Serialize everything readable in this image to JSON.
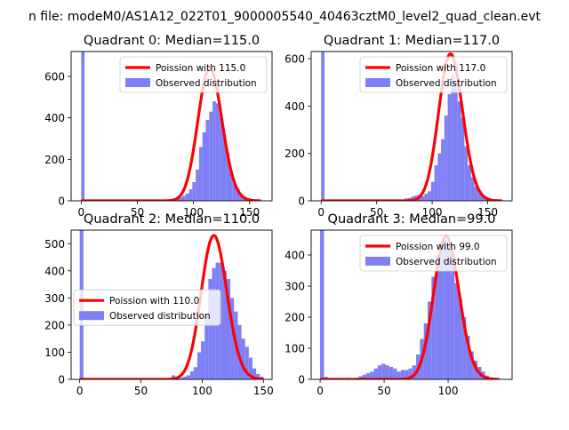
{
  "figure": {
    "suptitle": "n file: modeM0/AS1A12_022T01_9000005540_40463cztM0_level2_quad_clean.evt",
    "colors": {
      "observed": "#7f7ff6",
      "poisson": "#ff0000",
      "axis": "#000000"
    }
  },
  "chart_data": [
    {
      "type": "bar",
      "title": "Quadrant 0: Median=115.0",
      "xlim": [
        -9,
        170
      ],
      "ylim": [
        0,
        720
      ],
      "xticks": [
        0,
        50,
        100,
        150
      ],
      "yticks": [
        0,
        200,
        400,
        600
      ],
      "legend": {
        "placement": "top-right",
        "poisson": "Poission with 115.0",
        "observed": "Observed distribution"
      },
      "series": [
        {
          "name": "Observed distribution",
          "kind": "histogram",
          "bin_width": 3.0,
          "bins": [
            [
              0,
              760
            ],
            [
              60,
              2
            ],
            [
              66,
              3
            ],
            [
              69,
              5
            ],
            [
              72,
              4
            ],
            [
              75,
              5
            ],
            [
              78,
              8
            ],
            [
              81,
              7
            ],
            [
              84,
              12
            ],
            [
              87,
              16
            ],
            [
              90,
              25
            ],
            [
              93,
              35
            ],
            [
              96,
              55
            ],
            [
              99,
              90
            ],
            [
              102,
              150
            ],
            [
              105,
              260
            ],
            [
              108,
              330
            ],
            [
              111,
              390
            ],
            [
              114,
              430
            ],
            [
              117,
              480
            ],
            [
              120,
              470
            ],
            [
              123,
              420
            ],
            [
              126,
              320
            ],
            [
              129,
              230
            ],
            [
              132,
              140
            ],
            [
              135,
              90
            ],
            [
              138,
              60
            ],
            [
              141,
              30
            ],
            [
              144,
              15
            ],
            [
              147,
              8
            ],
            [
              150,
              4
            ],
            [
              153,
              2
            ]
          ]
        },
        {
          "name": "Poission with 115.0",
          "kind": "line",
          "mean": 115.0,
          "peak": 640,
          "x_range": [
            0,
            160
          ]
        }
      ]
    },
    {
      "type": "bar",
      "title": "Quadrant 1: Median=117.0",
      "xlim": [
        -9,
        172
      ],
      "ylim": [
        0,
        630
      ],
      "xticks": [
        0,
        50,
        100,
        150
      ],
      "yticks": [
        0,
        200,
        400,
        600
      ],
      "legend": {
        "placement": "top-right",
        "poisson": "Poission with 117.0",
        "observed": "Observed distribution"
      },
      "series": [
        {
          "name": "Observed distribution",
          "kind": "histogram",
          "bin_width": 3.0,
          "bins": [
            [
              0,
              650
            ],
            [
              60,
              4
            ],
            [
              66,
              5
            ],
            [
              69,
              6
            ],
            [
              75,
              10
            ],
            [
              78,
              12
            ],
            [
              81,
              18
            ],
            [
              84,
              22
            ],
            [
              87,
              25
            ],
            [
              90,
              20
            ],
            [
              93,
              30
            ],
            [
              96,
              40
            ],
            [
              99,
              80
            ],
            [
              102,
              150
            ],
            [
              105,
              200
            ],
            [
              108,
              260
            ],
            [
              111,
              360
            ],
            [
              114,
              450
            ],
            [
              117,
              530
            ],
            [
              120,
              500
            ],
            [
              123,
              420
            ],
            [
              126,
              350
            ],
            [
              129,
              230
            ],
            [
              132,
              150
            ],
            [
              135,
              100
            ],
            [
              138,
              60
            ],
            [
              141,
              40
            ],
            [
              144,
              20
            ],
            [
              147,
              10
            ],
            [
              150,
              5
            ],
            [
              153,
              2
            ]
          ]
        },
        {
          "name": "Poission with 117.0",
          "kind": "line",
          "mean": 117.0,
          "peak": 620,
          "x_range": [
            0,
            163
          ]
        }
      ]
    },
    {
      "type": "bar",
      "title": "Quadrant 2: Median=110.0",
      "xlim": [
        -7,
        157
      ],
      "ylim": [
        0,
        550
      ],
      "xticks": [
        0,
        50,
        100,
        150
      ],
      "yticks": [
        0,
        100,
        200,
        300,
        400,
        500
      ],
      "legend": {
        "placement": "center-left",
        "poisson": "Poission with 110.0",
        "observed": "Observed distribution"
      },
      "series": [
        {
          "name": "Observed distribution",
          "kind": "histogram",
          "bin_width": 3.0,
          "bins": [
            [
              0,
              560
            ],
            [
              75,
              15
            ],
            [
              81,
              5
            ],
            [
              84,
              10
            ],
            [
              87,
              15
            ],
            [
              90,
              30
            ],
            [
              93,
              45
            ],
            [
              96,
              100
            ],
            [
              99,
              140
            ],
            [
              102,
              240
            ],
            [
              105,
              370
            ],
            [
              108,
              410
            ],
            [
              111,
              430
            ],
            [
              114,
              430
            ],
            [
              117,
              400
            ],
            [
              120,
              370
            ],
            [
              123,
              300
            ],
            [
              126,
              250
            ],
            [
              129,
              200
            ],
            [
              132,
              150
            ],
            [
              135,
              120
            ],
            [
              138,
              80
            ],
            [
              141,
              40
            ],
            [
              144,
              20
            ],
            [
              147,
              10
            ]
          ]
        },
        {
          "name": "Poission with 110.0",
          "kind": "line",
          "mean": 110.0,
          "peak": 530,
          "x_range": [
            0,
            150
          ]
        }
      ]
    },
    {
      "type": "bar",
      "title": "Quadrant 3: Median=99.0",
      "xlim": [
        -7,
        150
      ],
      "ylim": [
        0,
        480
      ],
      "xticks": [
        0,
        50,
        100
      ],
      "yticks": [
        0,
        100,
        200,
        300,
        400
      ],
      "legend": {
        "placement": "top-right",
        "poisson": "Poission with 99.0",
        "observed": "Observed distribution"
      },
      "series": [
        {
          "name": "Observed distribution",
          "kind": "histogram",
          "bin_width": 3.0,
          "bins": [
            [
              0,
              490
            ],
            [
              3,
              8
            ],
            [
              21,
              5
            ],
            [
              24,
              4
            ],
            [
              27,
              5
            ],
            [
              30,
              10
            ],
            [
              33,
              15
            ],
            [
              36,
              20
            ],
            [
              39,
              25
            ],
            [
              42,
              35
            ],
            [
              45,
              45
            ],
            [
              48,
              50
            ],
            [
              51,
              45
            ],
            [
              54,
              40
            ],
            [
              57,
              35
            ],
            [
              60,
              25
            ],
            [
              63,
              30
            ],
            [
              66,
              30
            ],
            [
              69,
              35
            ],
            [
              72,
              45
            ],
            [
              75,
              80
            ],
            [
              78,
              130
            ],
            [
              81,
              180
            ],
            [
              84,
              250
            ],
            [
              87,
              330
            ],
            [
              90,
              400
            ],
            [
              93,
              440
            ],
            [
              96,
              450
            ],
            [
              99,
              430
            ],
            [
              102,
              400
            ],
            [
              105,
              310
            ],
            [
              108,
              260
            ],
            [
              111,
              200
            ],
            [
              114,
              140
            ],
            [
              117,
              90
            ],
            [
              120,
              60
            ],
            [
              123,
              40
            ],
            [
              126,
              25
            ],
            [
              129,
              12
            ],
            [
              132,
              6
            ]
          ]
        },
        {
          "name": "Poission with 99.0",
          "kind": "line",
          "mean": 99.0,
          "peak": 460,
          "x_range": [
            0,
            140
          ]
        }
      ]
    }
  ]
}
